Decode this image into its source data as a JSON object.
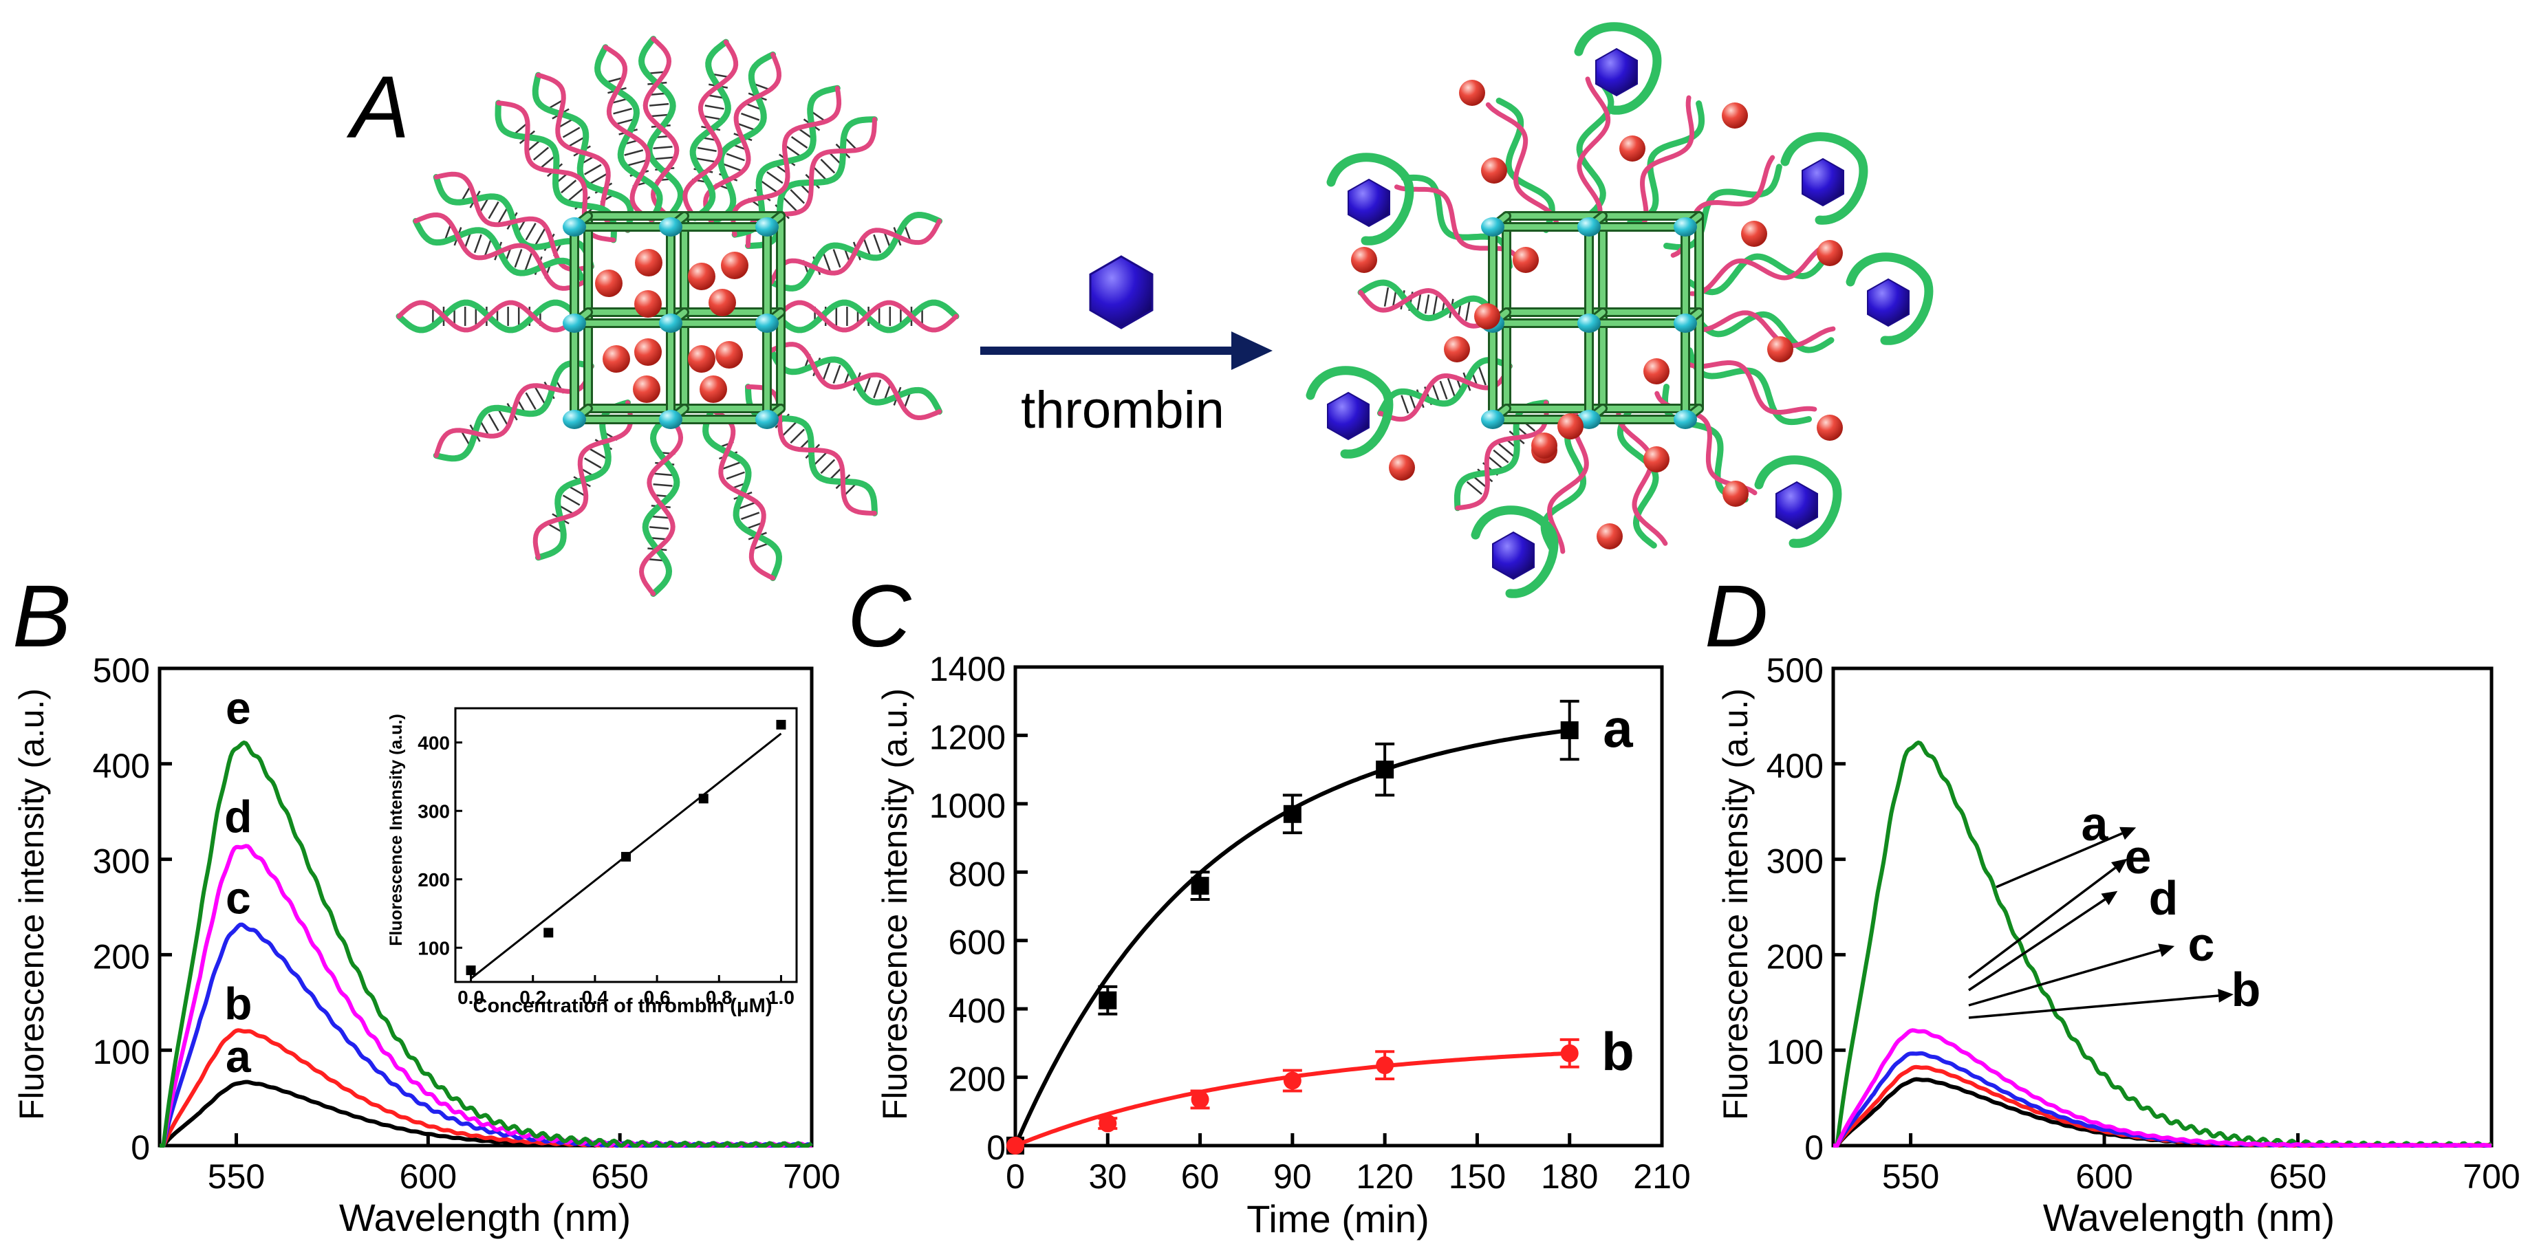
{
  "schematic": {
    "panel_label": "A",
    "arrow_label": "thrombin",
    "icons": [
      "dna-helix-icon",
      "framework-cage-icon",
      "cargo-sphere-icon",
      "thrombin-protein-icon"
    ],
    "colors": {
      "framework": "#3a9a4a",
      "node": "#31c4d8",
      "cargo": "#e0302a",
      "strand_green": "#2fbf62",
      "strand_pink": "#e0467f",
      "thrombin": "#2a14c8",
      "arrow": "#0d1f5c"
    }
  },
  "chart_data": [
    {
      "id": "B",
      "type": "line",
      "panel_label": "B",
      "xlabel": "Wavelength (nm)",
      "ylabel": "Fluorescence intensity (a.u.)",
      "xlim": [
        530,
        700
      ],
      "ylim": [
        0,
        500
      ],
      "xticks": [
        550,
        600,
        650,
        700
      ],
      "yticks": [
        0,
        100,
        200,
        300,
        400,
        500
      ],
      "grid": false,
      "series": [
        {
          "name": "a",
          "color": "#000000",
          "peak_x": 552,
          "peak_y": 67
        },
        {
          "name": "b",
          "color": "#ff2020",
          "peak_x": 551,
          "peak_y": 122
        },
        {
          "name": "c",
          "color": "#2222ee",
          "peak_x": 551,
          "peak_y": 233
        },
        {
          "name": "d",
          "color": "#ff00ff",
          "peak_x": 551,
          "peak_y": 318
        },
        {
          "name": "e",
          "color": "#118a1e",
          "peak_x": 551,
          "peak_y": 426
        }
      ],
      "inset": {
        "type": "scatter",
        "xlabel": "Concentration of thrombin (μM)",
        "ylabel": "Fluorescence Intensity (a.u.)",
        "xlim": [
          -0.05,
          1.05
        ],
        "ylim": [
          50,
          450
        ],
        "xticks": [
          "0.0",
          "0.2",
          "0.4",
          "0.6",
          "0.8",
          "1.0"
        ],
        "yticks": [
          "100",
          "200",
          "300",
          "400"
        ],
        "x": [
          0.0,
          0.25,
          0.5,
          0.75,
          1.0
        ],
        "y": [
          67,
          122,
          233,
          318,
          426
        ],
        "fit": {
          "slope": 358,
          "intercept": 55
        }
      }
    },
    {
      "id": "C",
      "type": "line",
      "panel_label": "C",
      "xlabel": "Time (min)",
      "ylabel": "Fluorescence intensity (a.u.)",
      "xlim": [
        0,
        210
      ],
      "ylim": [
        0,
        1400
      ],
      "xticks": [
        0,
        30,
        60,
        90,
        120,
        150,
        180,
        210
      ],
      "yticks": [
        0,
        200,
        400,
        600,
        800,
        1000,
        1200,
        1400
      ],
      "grid": false,
      "series": [
        {
          "name": "a",
          "color": "#000000",
          "marker": "square",
          "x": [
            0,
            30,
            60,
            90,
            120,
            180
          ],
          "y": [
            0,
            425,
            760,
            970,
            1100,
            1215
          ],
          "err": [
            0,
            40,
            40,
            55,
            75,
            85
          ]
        },
        {
          "name": "b",
          "color": "#ff2020",
          "marker": "circle",
          "x": [
            0,
            30,
            60,
            90,
            120,
            180
          ],
          "y": [
            0,
            65,
            135,
            190,
            235,
            270
          ],
          "err": [
            0,
            15,
            25,
            30,
            40,
            40
          ]
        }
      ]
    },
    {
      "id": "D",
      "type": "line",
      "panel_label": "D",
      "xlabel": "Wavelength (nm)",
      "ylabel": "Fluorescence intensity (a.u.)",
      "xlim": [
        530,
        700
      ],
      "ylim": [
        0,
        500
      ],
      "xticks": [
        550,
        600,
        650,
        700
      ],
      "yticks": [
        0,
        100,
        200,
        300,
        400,
        500
      ],
      "grid": false,
      "series": [
        {
          "name": "a",
          "color": "#118a1e",
          "peak_x": 551,
          "peak_y": 426
        },
        {
          "name": "b",
          "color": "#000000",
          "peak_x": 552,
          "peak_y": 70
        },
        {
          "name": "c",
          "color": "#ff2020",
          "peak_x": 552,
          "peak_y": 83
        },
        {
          "name": "d",
          "color": "#2222ee",
          "peak_x": 551,
          "peak_y": 98
        },
        {
          "name": "e",
          "color": "#ff00ff",
          "peak_x": 551,
          "peak_y": 122
        }
      ]
    }
  ]
}
